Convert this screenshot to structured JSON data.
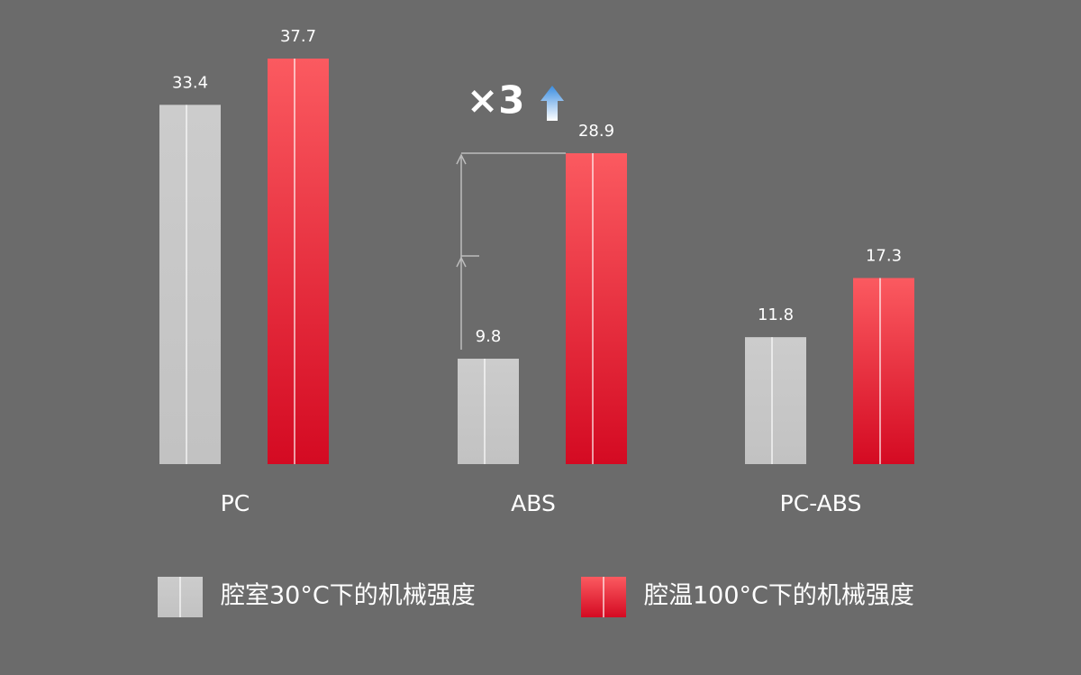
{
  "chart_data": {
    "type": "bar",
    "categories": [
      "PC",
      "ABS",
      "PC-ABS"
    ],
    "series": [
      {
        "name": "腔室30°C下的机械强度",
        "color": "#c8c8c8",
        "values": [
          33.4,
          9.8,
          11.8
        ]
      },
      {
        "name": "腔温100°C下的机械强度",
        "color": "#e8162e",
        "values": [
          37.7,
          28.9,
          17.3
        ]
      }
    ],
    "annotation": "×3"
  }
}
